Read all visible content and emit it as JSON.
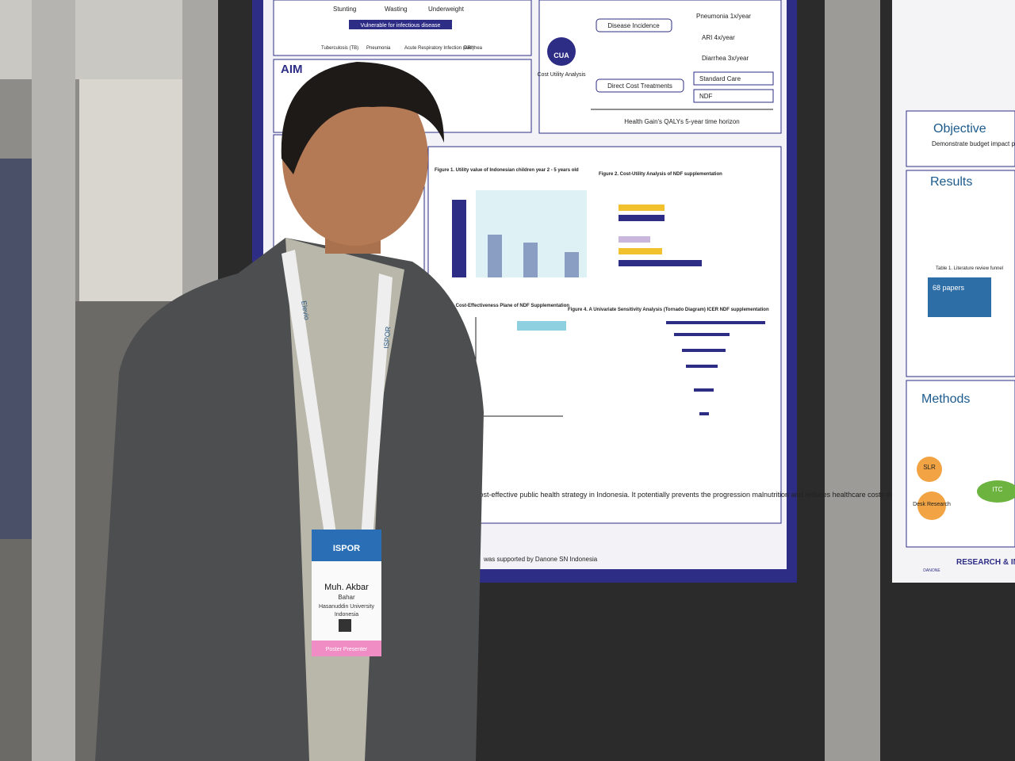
{
  "poster_left": {
    "risk_labels": [
      "Stunting",
      "Wasting",
      "Underweight"
    ],
    "vulnerable": "Vulnerable for infectious disease",
    "diseases": [
      "Tuberculosis (TB)",
      "Pneumonia",
      "Acute Respiratory Infection (ARI)",
      "Diarrhea"
    ],
    "aim_title": "AIM",
    "cua": "CUA",
    "cua_caption": "Cost Utility Analysis",
    "disease_incidence": "Disease Incidence",
    "incidences": [
      "Pneumonia  1x/year",
      "ARI  4x/year",
      "Diarrhea  3x/year"
    ],
    "direct_cost": "Direct Cost Treatments",
    "arms": [
      "Standard Care",
      "NDF"
    ],
    "horizon": "Health Gain's QALYs 5-year time horizon",
    "figures": [
      "Figure 1. Utility value of Indonesian children year 2 - 5 years old",
      "Figure 2. Cost-Utility Analysis of NDF supplementation",
      "Figure 3. Cost-Effectiveness Plane of NDF Supplementation",
      "Figure 4. A Univariate Sensitivity Analysis (Tornado Diagram) ICER NDF supplementation"
    ],
    "conclusion": "cost-effective public health strategy in Indonesia. It potentially prevents the progression malnutrition and reduces healthcare costs through decreased treatment costs.",
    "funding": "was supported by Danone SN Indonesia"
  },
  "poster_right": {
    "objective": "Objective",
    "objective_text": "Demonstrate budget impact patients in the community se",
    "results": "Results",
    "table1": "Table 1. Literature review funnel",
    "papers": "68 papers",
    "methods": "Methods",
    "slr": "SLR",
    "itc": "ITC",
    "desk": "Desk Research",
    "brand": "RESEARCH & INNOVATION",
    "logo": "DANONE"
  },
  "badge": {
    "event": "ISPOR",
    "name": "Muh. Akbar",
    "surname": "Bahar",
    "affiliation": "Hasanuddin University",
    "country": "Indonesia",
    "role": "Poster Presenter"
  },
  "lanyard": [
    "Elevio",
    "ISPOR"
  ]
}
